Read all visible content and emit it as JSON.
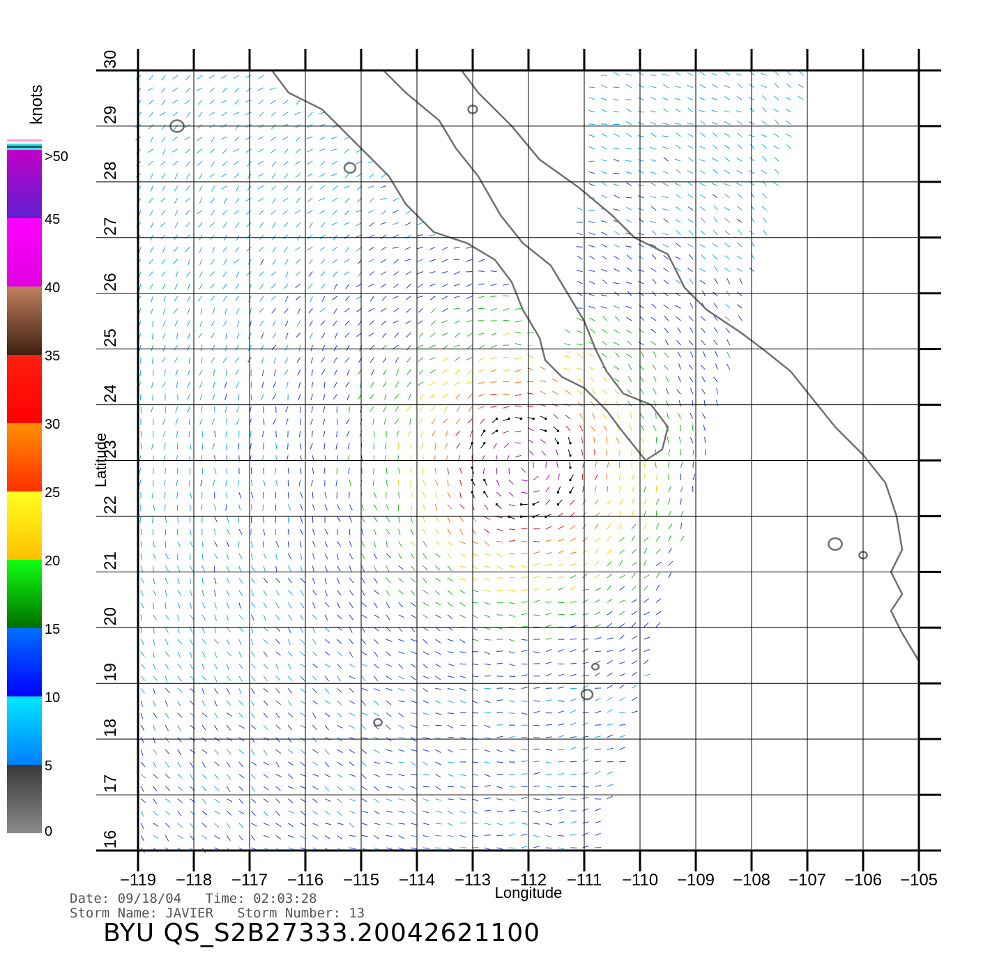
{
  "map": {
    "legend": {
      "unit_label": "knots",
      "levels": [
        {
          "label": "0",
          "value": 0
        },
        {
          "label": "5",
          "value": 5
        },
        {
          "label": "10",
          "value": 10
        },
        {
          "label": "15",
          "value": 15
        },
        {
          "label": "20",
          "value": 20
        },
        {
          "label": "25",
          "value": 25
        },
        {
          "label": "30",
          "value": 30
        },
        {
          "label": "35",
          "value": 35
        },
        {
          "label": "40",
          "value": 40
        },
        {
          "label": "45",
          "value": 45
        },
        {
          "label": ">50",
          "value": 50
        }
      ],
      "bands": [
        {
          "from": 0,
          "to": 5,
          "top": "#3a3a3a",
          "bottom": "#8a8a8a"
        },
        {
          "from": 5,
          "to": 10,
          "top": "#00e8ff",
          "bottom": "#0080ff"
        },
        {
          "from": 10,
          "to": 15,
          "top": "#0070ff",
          "bottom": "#0000ff"
        },
        {
          "from": 15,
          "to": 20,
          "top": "#10ff10",
          "bottom": "#007000"
        },
        {
          "from": 20,
          "to": 25,
          "top": "#ffff20",
          "bottom": "#ffc000"
        },
        {
          "from": 25,
          "to": 30,
          "top": "#ff9000",
          "bottom": "#ff3000"
        },
        {
          "from": 30,
          "to": 35,
          "top": "#ff2010",
          "bottom": "#ff0000"
        },
        {
          "from": 35,
          "to": 40,
          "top": "#c08060",
          "bottom": "#402010"
        },
        {
          "from": 40,
          "to": 45,
          "top": "#ff00ff",
          "bottom": "#e000e0"
        },
        {
          "from": 45,
          "to": 50,
          "top": "#c000c8",
          "bottom": "#6020d0"
        }
      ]
    },
    "x_axis": {
      "label": "Longitude",
      "ticks": [
        {
          "value": -119,
          "label": "−119"
        },
        {
          "value": -118,
          "label": "−118"
        },
        {
          "value": -117,
          "label": "−117"
        },
        {
          "value": -116,
          "label": "−116"
        },
        {
          "value": -115,
          "label": "−115"
        },
        {
          "value": -114,
          "label": "−114"
        },
        {
          "value": -113,
          "label": "−113"
        },
        {
          "value": -112,
          "label": "−112"
        },
        {
          "value": -111,
          "label": "−111"
        },
        {
          "value": -110,
          "label": "−110"
        },
        {
          "value": -109,
          "label": "−109"
        },
        {
          "value": -108,
          "label": "−108"
        },
        {
          "value": -107,
          "label": "−107"
        },
        {
          "value": -106,
          "label": "−106"
        },
        {
          "value": -105,
          "label": "−105"
        }
      ],
      "range": [
        -119,
        -105
      ]
    },
    "y_axis": {
      "label": "Latitude",
      "ticks": [
        {
          "value": 16,
          "label": "16"
        },
        {
          "value": 17,
          "label": "17"
        },
        {
          "value": 18,
          "label": "18"
        },
        {
          "value": 19,
          "label": "19"
        },
        {
          "value": 20,
          "label": "20"
        },
        {
          "value": 21,
          "label": "21"
        },
        {
          "value": 22,
          "label": "22"
        },
        {
          "value": 23,
          "label": "23"
        },
        {
          "value": 24,
          "label": "24"
        },
        {
          "value": 25,
          "label": "25"
        },
        {
          "value": 26,
          "label": "26"
        },
        {
          "value": 27,
          "label": "27"
        },
        {
          "value": 28,
          "label": "28"
        },
        {
          "value": 29,
          "label": "29"
        },
        {
          "value": 30,
          "label": "30"
        }
      ],
      "range": [
        16,
        30
      ]
    },
    "grid": true,
    "storm_center": {
      "lon": -112.1,
      "lat": 22.9
    },
    "coastline": [
      [
        -116.6,
        30.0
      ],
      [
        -116.3,
        29.6
      ],
      [
        -115.7,
        29.3
      ],
      [
        -115.3,
        28.9
      ],
      [
        -114.9,
        28.5
      ],
      [
        -114.5,
        28.1
      ],
      [
        -114.2,
        27.6
      ],
      [
        -113.7,
        27.1
      ],
      [
        -113.1,
        26.9
      ],
      [
        -112.6,
        26.6
      ],
      [
        -112.3,
        26.2
      ],
      [
        -112.1,
        25.7
      ],
      [
        -111.8,
        25.2
      ],
      [
        -111.7,
        24.8
      ],
      [
        -111.4,
        24.5
      ],
      [
        -111.0,
        24.3
      ],
      [
        -110.6,
        23.9
      ],
      [
        -110.3,
        23.5
      ],
      [
        -109.9,
        23.0
      ],
      [
        -109.6,
        23.2
      ],
      [
        -109.5,
        23.6
      ],
      [
        -109.8,
        24.0
      ],
      [
        -110.3,
        24.2
      ],
      [
        -110.6,
        24.6
      ],
      [
        -110.8,
        25.0
      ],
      [
        -111.0,
        25.5
      ],
      [
        -111.3,
        26.0
      ],
      [
        -111.6,
        26.5
      ],
      [
        -112.1,
        26.9
      ],
      [
        -112.5,
        27.4
      ],
      [
        -112.9,
        28.1
      ],
      [
        -113.3,
        28.6
      ],
      [
        -113.6,
        29.1
      ],
      [
        -114.2,
        29.6
      ],
      [
        -114.6,
        30.0
      ]
    ],
    "mainland": [
      [
        -113.2,
        30.0
      ],
      [
        -112.9,
        29.6
      ],
      [
        -112.3,
        29.0
      ],
      [
        -111.8,
        28.4
      ],
      [
        -111.1,
        27.9
      ],
      [
        -110.5,
        27.4
      ],
      [
        -110.1,
        27.0
      ],
      [
        -109.5,
        26.7
      ],
      [
        -109.2,
        26.1
      ],
      [
        -108.8,
        25.7
      ],
      [
        -108.2,
        25.3
      ],
      [
        -107.8,
        25.0
      ],
      [
        -107.3,
        24.6
      ],
      [
        -106.9,
        24.1
      ],
      [
        -106.5,
        23.6
      ],
      [
        -106.0,
        23.1
      ],
      [
        -105.6,
        22.6
      ],
      [
        -105.4,
        22.0
      ],
      [
        -105.3,
        21.4
      ],
      [
        -105.5,
        21.0
      ],
      [
        -105.3,
        20.6
      ],
      [
        -105.5,
        20.3
      ],
      [
        -105.3,
        19.9
      ],
      [
        -105.0,
        19.4
      ]
    ],
    "islands": [
      {
        "lon": -118.3,
        "lat": 29.0,
        "r": 0.12
      },
      {
        "lon": -115.2,
        "lat": 28.25,
        "r": 0.1
      },
      {
        "lon": -113.0,
        "lat": 29.3,
        "r": 0.08
      },
      {
        "lon": -110.95,
        "lat": 18.8,
        "r": 0.1
      },
      {
        "lon": -110.8,
        "lat": 19.3,
        "r": 0.06
      },
      {
        "lon": -114.7,
        "lat": 18.3,
        "r": 0.07
      },
      {
        "lon": -106.5,
        "lat": 21.5,
        "r": 0.12
      },
      {
        "lon": -106.0,
        "lat": 21.3,
        "r": 0.07
      }
    ]
  },
  "footer": {
    "date_line": "Date: 09/18/04   Time: 02:03:28",
    "storm_line": "Storm Name: JAVIER   Storm Number: 13",
    "title": "BYU QS_S2B27333.20042621100"
  }
}
